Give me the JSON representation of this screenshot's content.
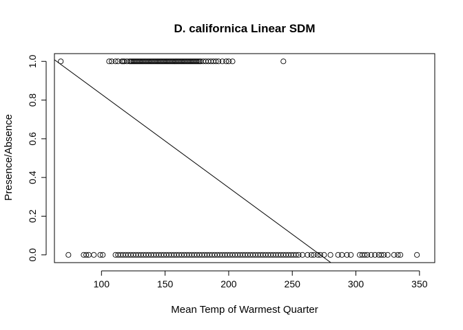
{
  "chart_data": {
    "type": "scatter",
    "title": "D. californica Linear SDM",
    "xlabel": "Mean Temp of Warmest Quarter",
    "ylabel": "Presence/Absence",
    "xlim": [
      63,
      362
    ],
    "ylim": [
      -0.04,
      1.04
    ],
    "xticks": [
      100,
      150,
      200,
      250,
      300,
      350
    ],
    "yticks": [
      0.0,
      0.2,
      0.4,
      0.6,
      0.8,
      1.0
    ],
    "xtick_labels": [
      "100",
      "150",
      "200",
      "250",
      "300",
      "350"
    ],
    "ytick_labels": [
      "0.0",
      "0.2",
      "0.4",
      "0.6",
      "0.8",
      "1.0"
    ],
    "grid": false,
    "legend": "none",
    "fit_line": {
      "intercept": 1.3125,
      "slope": -0.004825
    },
    "series": [
      {
        "presence": 1,
        "x": [
          68,
          106,
          108,
          111,
          113,
          116,
          117,
          118,
          120,
          122,
          123,
          124,
          125,
          126,
          127,
          128,
          129,
          130,
          131,
          132,
          133,
          134,
          135,
          136,
          137,
          138,
          139,
          140,
          141,
          142,
          143,
          144,
          145,
          146,
          147,
          148,
          149,
          150,
          151,
          152,
          153,
          154,
          155,
          156,
          157,
          158,
          159,
          160,
          161,
          162,
          163,
          164,
          165,
          166,
          167,
          168,
          169,
          170,
          171,
          172,
          173,
          174,
          175,
          176,
          177,
          178,
          180,
          182,
          184,
          186,
          188,
          190,
          192,
          195,
          198,
          200,
          203,
          243
        ]
      },
      {
        "presence": 0,
        "x": [
          74,
          86,
          88,
          90,
          94,
          99,
          101,
          111,
          113,
          115,
          117,
          119,
          121,
          123,
          125,
          127,
          129,
          131,
          133,
          135,
          137,
          139,
          141,
          143,
          145,
          147,
          149,
          151,
          153,
          155,
          157,
          159,
          161,
          163,
          165,
          167,
          169,
          171,
          173,
          175,
          177,
          179,
          181,
          183,
          185,
          187,
          189,
          191,
          193,
          195,
          197,
          199,
          201,
          203,
          205,
          207,
          209,
          211,
          213,
          215,
          217,
          219,
          221,
          223,
          225,
          227,
          229,
          231,
          233,
          235,
          237,
          239,
          241,
          243,
          245,
          247,
          249,
          251,
          253,
          255,
          258,
          262,
          265,
          267,
          270,
          272,
          275,
          280,
          286,
          289,
          293,
          296,
          303,
          305,
          307,
          309,
          312,
          315,
          318,
          320,
          322,
          325,
          330,
          333,
          335,
          348
        ]
      }
    ]
  }
}
